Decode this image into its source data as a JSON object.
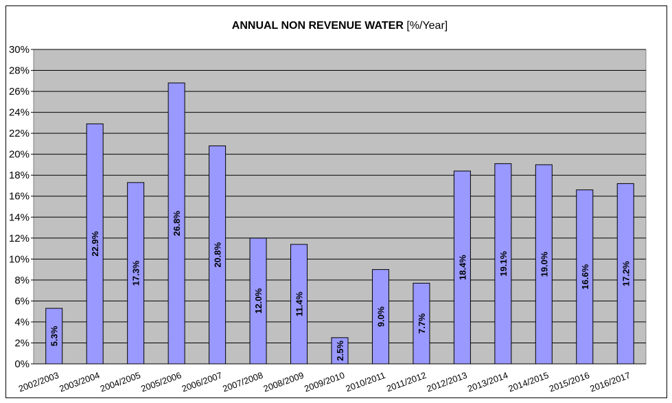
{
  "chart_data": {
    "type": "bar",
    "title": "ANNUAL NON REVENUE WATER",
    "title_unit": "[%/Year]",
    "categories": [
      "2002/2003",
      "2003/2004",
      "2004/2005",
      "2005/2006",
      "2006/2007",
      "2007/2008",
      "2008/2009",
      "2009/2010",
      "2010/2011",
      "2011/2012",
      "2012/2013",
      "2013/2014",
      "2014/2015",
      "2015/2016",
      "2016/2017"
    ],
    "values": [
      5.3,
      22.9,
      17.3,
      26.8,
      20.8,
      12.0,
      11.4,
      2.5,
      9.0,
      7.7,
      18.4,
      19.1,
      19.0,
      16.6,
      17.2
    ],
    "value_labels": [
      "5.3%",
      "22.9%",
      "17.3%",
      "26.8%",
      "20.8%",
      "12.0%",
      "11.4%",
      "2.5%",
      "9.0%",
      "7.7%",
      "18.4%",
      "19.1%",
      "19.0%",
      "16.6%",
      "17.2%"
    ],
    "color": "#9999ff",
    "ylim": [
      0,
      30
    ],
    "yticks": [
      {
        "value": 0,
        "label": "0%"
      },
      {
        "value": 2,
        "label": "2%"
      },
      {
        "value": 4,
        "label": "4%"
      },
      {
        "value": 6,
        "label": "6%"
      },
      {
        "value": 8,
        "label": "8%"
      },
      {
        "value": 10,
        "label": "10%"
      },
      {
        "value": 12,
        "label": "12%"
      },
      {
        "value": 14,
        "label": "14%"
      },
      {
        "value": 16,
        "label": "16%"
      },
      {
        "value": 18,
        "label": "18%"
      },
      {
        "value": 20,
        "label": "20%"
      },
      {
        "value": 22,
        "label": "22%"
      },
      {
        "value": 24,
        "label": "24%"
      },
      {
        "value": 26,
        "label": "26%"
      },
      {
        "value": 28,
        "label": "28%"
      },
      {
        "value": 30,
        "label": "30%"
      }
    ],
    "grid": true
  }
}
